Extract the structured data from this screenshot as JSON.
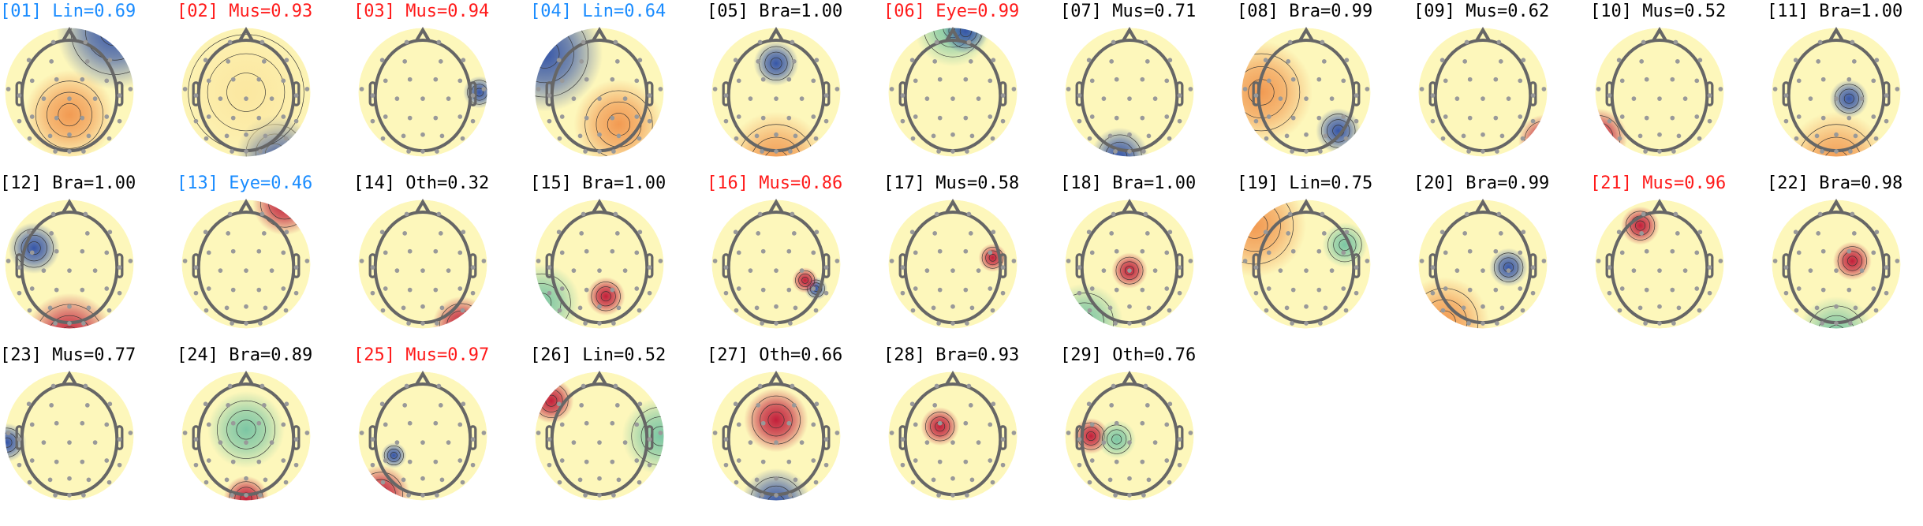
{
  "colors": {
    "default": "#000000",
    "flag_blue": "#1a8cff",
    "flag_red": "#ff1a1a"
  },
  "components": [
    {
      "id": "[01]",
      "label": "Lin",
      "score": "0.69",
      "color": "flag_blue"
    },
    {
      "id": "[02]",
      "label": "Mus",
      "score": "0.93",
      "color": "flag_red"
    },
    {
      "id": "[03]",
      "label": "Mus",
      "score": "0.94",
      "color": "flag_red"
    },
    {
      "id": "[04]",
      "label": "Lin",
      "score": "0.64",
      "color": "flag_blue"
    },
    {
      "id": "[05]",
      "label": "Bra",
      "score": "1.00",
      "color": "default"
    },
    {
      "id": "[06]",
      "label": "Eye",
      "score": "0.99",
      "color": "flag_red"
    },
    {
      "id": "[07]",
      "label": "Mus",
      "score": "0.71",
      "color": "default"
    },
    {
      "id": "[08]",
      "label": "Bra",
      "score": "0.99",
      "color": "default"
    },
    {
      "id": "[09]",
      "label": "Mus",
      "score": "0.62",
      "color": "default"
    },
    {
      "id": "[10]",
      "label": "Mus",
      "score": "0.52",
      "color": "default"
    },
    {
      "id": "[11]",
      "label": "Bra",
      "score": "1.00",
      "color": "default"
    },
    {
      "id": "[12]",
      "label": "Bra",
      "score": "1.00",
      "color": "default"
    },
    {
      "id": "[13]",
      "label": "Eye",
      "score": "0.46",
      "color": "flag_blue"
    },
    {
      "id": "[14]",
      "label": "Oth",
      "score": "0.32",
      "color": "default"
    },
    {
      "id": "[15]",
      "label": "Bra",
      "score": "1.00",
      "color": "default"
    },
    {
      "id": "[16]",
      "label": "Mus",
      "score": "0.86",
      "color": "flag_red"
    },
    {
      "id": "[17]",
      "label": "Mus",
      "score": "0.58",
      "color": "default"
    },
    {
      "id": "[18]",
      "label": "Bra",
      "score": "1.00",
      "color": "default"
    },
    {
      "id": "[19]",
      "label": "Lin",
      "score": "0.75",
      "color": "default"
    },
    {
      "id": "[20]",
      "label": "Bra",
      "score": "0.99",
      "color": "default"
    },
    {
      "id": "[21]",
      "label": "Mus",
      "score": "0.96",
      "color": "flag_red"
    },
    {
      "id": "[22]",
      "label": "Bra",
      "score": "0.98",
      "color": "default"
    },
    {
      "id": "[23]",
      "label": "Mus",
      "score": "0.77",
      "color": "default"
    },
    {
      "id": "[24]",
      "label": "Bra",
      "score": "0.89",
      "color": "default"
    },
    {
      "id": "[25]",
      "label": "Mus",
      "score": "0.97",
      "color": "flag_red"
    },
    {
      "id": "[26]",
      "label": "Lin",
      "score": "0.52",
      "color": "default"
    },
    {
      "id": "[27]",
      "label": "Oth",
      "score": "0.66",
      "color": "default"
    },
    {
      "id": "[28]",
      "label": "Bra",
      "score": "0.93",
      "color": "default"
    },
    {
      "id": "[29]",
      "label": "Oth",
      "score": "0.76",
      "color": "default"
    }
  ]
}
